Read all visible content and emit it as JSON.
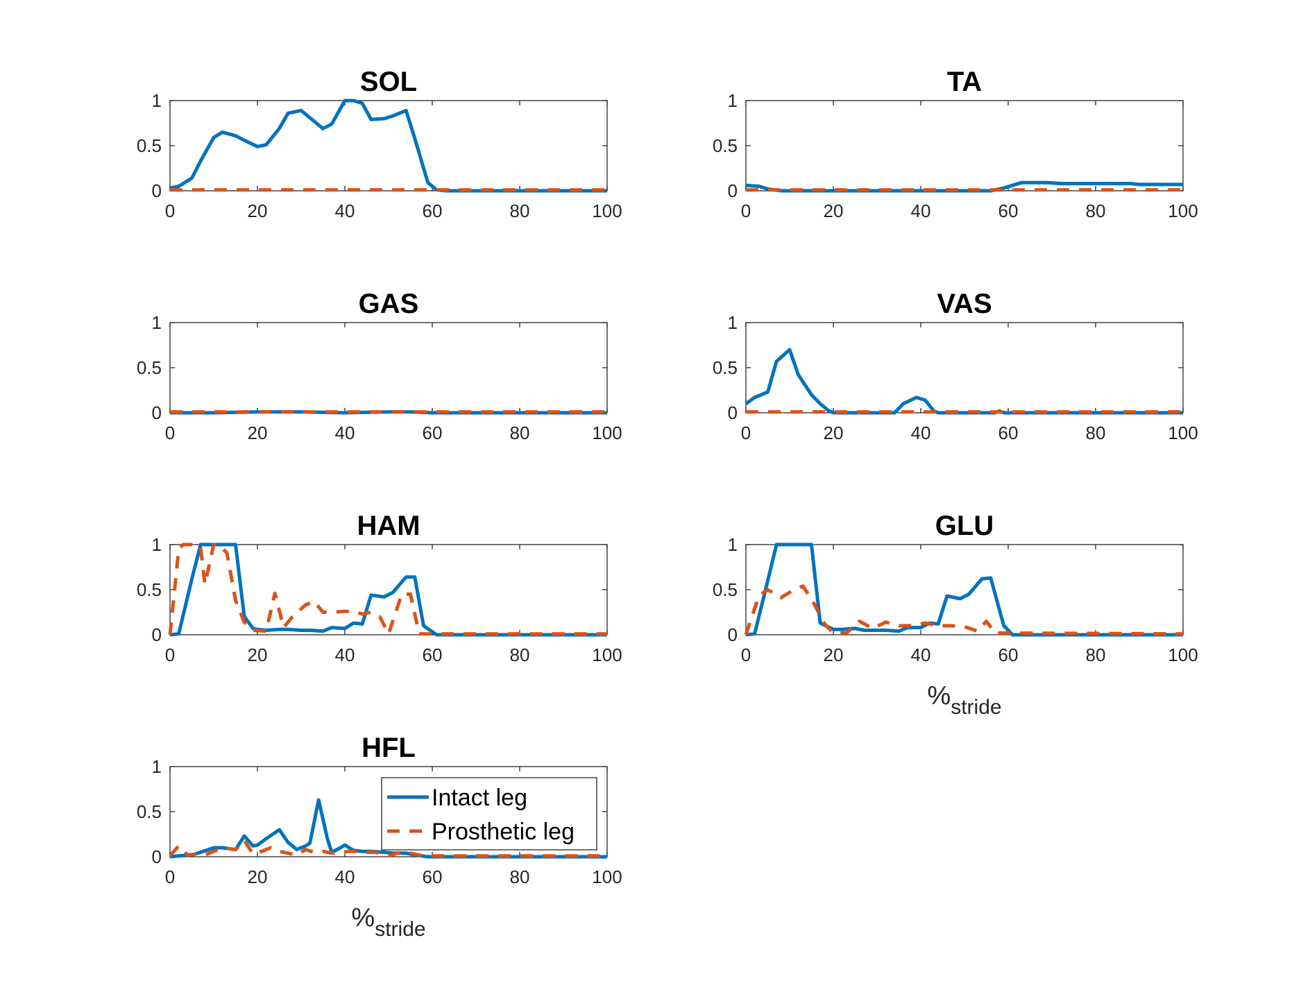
{
  "colors": {
    "intact": "#0072BD",
    "prosthetic": "#D95319"
  },
  "legend": {
    "intact_label": "Intact leg",
    "prosthetic_label": "Prosthetic leg"
  },
  "xlabel_main": "%",
  "xlabel_sub": "stride",
  "chart_data": [
    {
      "type": "line",
      "title": "SOL",
      "xlim": [
        0,
        100
      ],
      "ylim": [
        0,
        1
      ],
      "xticks": [
        0,
        20,
        40,
        60,
        80,
        100
      ],
      "yticks": [
        0,
        0.5,
        1
      ],
      "xlabel": "",
      "series": [
        {
          "name": "Intact leg",
          "x": [
            0,
            2,
            5,
            7,
            10,
            12,
            15,
            17,
            20,
            22,
            25,
            27,
            30,
            32,
            35,
            37,
            40,
            42,
            44,
            46,
            49,
            51,
            54,
            56,
            59,
            61,
            63,
            100
          ],
          "y": [
            0.03,
            0.05,
            0.14,
            0.33,
            0.59,
            0.65,
            0.61,
            0.56,
            0.49,
            0.51,
            0.69,
            0.86,
            0.89,
            0.81,
            0.69,
            0.74,
            1.0,
            1.0,
            0.97,
            0.79,
            0.8,
            0.83,
            0.89,
            0.58,
            0.09,
            0.01,
            0.0,
            0.0
          ]
        },
        {
          "name": "Prosthetic leg",
          "x": [
            0,
            100
          ],
          "y": [
            0.01,
            0.01
          ]
        }
      ]
    },
    {
      "type": "line",
      "title": "TA",
      "xlim": [
        0,
        100
      ],
      "ylim": [
        0,
        1
      ],
      "xticks": [
        0,
        20,
        40,
        60,
        80,
        100
      ],
      "yticks": [
        0,
        0.5,
        1
      ],
      "xlabel": "",
      "series": [
        {
          "name": "Intact leg",
          "x": [
            0,
            3,
            5,
            8,
            56,
            59,
            61,
            63,
            66,
            69,
            72,
            75,
            80,
            82,
            85,
            88,
            90,
            95,
            100
          ],
          "y": [
            0.06,
            0.05,
            0.02,
            0.0,
            0.0,
            0.03,
            0.06,
            0.09,
            0.09,
            0.09,
            0.08,
            0.08,
            0.08,
            0.08,
            0.08,
            0.08,
            0.07,
            0.07,
            0.07
          ]
        },
        {
          "name": "Prosthetic leg",
          "x": [
            0,
            100
          ],
          "y": [
            0.01,
            0.01
          ]
        }
      ]
    },
    {
      "type": "line",
      "title": "GAS",
      "xlim": [
        0,
        100
      ],
      "ylim": [
        0,
        1
      ],
      "xticks": [
        0,
        20,
        40,
        60,
        80,
        100
      ],
      "yticks": [
        0,
        0.5,
        1
      ],
      "xlabel": "",
      "series": [
        {
          "name": "Intact leg",
          "x": [
            0,
            10,
            20,
            30,
            40,
            50,
            55,
            60,
            100
          ],
          "y": [
            0.0,
            0.0,
            0.01,
            0.01,
            0.0,
            0.01,
            0.01,
            0.0,
            0.0
          ]
        },
        {
          "name": "Prosthetic leg",
          "x": [
            0,
            100
          ],
          "y": [
            0.01,
            0.01
          ]
        }
      ]
    },
    {
      "type": "line",
      "title": "VAS",
      "xlim": [
        0,
        100
      ],
      "ylim": [
        0,
        1
      ],
      "xticks": [
        0,
        20,
        40,
        60,
        80,
        100
      ],
      "yticks": [
        0,
        0.5,
        1
      ],
      "xlabel": "",
      "series": [
        {
          "name": "Intact leg",
          "x": [
            0,
            2,
            5,
            7,
            10,
            12,
            15,
            17,
            19,
            20,
            34,
            36,
            39,
            41,
            43,
            44,
            57,
            58,
            59,
            100
          ],
          "y": [
            0.1,
            0.17,
            0.23,
            0.57,
            0.7,
            0.42,
            0.2,
            0.1,
            0.02,
            0.0,
            0.0,
            0.1,
            0.17,
            0.14,
            0.02,
            0.0,
            0.0,
            0.02,
            0.0,
            0.0
          ]
        },
        {
          "name": "Prosthetic leg",
          "x": [
            0,
            100
          ],
          "y": [
            0.01,
            0.01
          ]
        }
      ]
    },
    {
      "type": "line",
      "title": "HAM",
      "xlim": [
        0,
        100
      ],
      "ylim": [
        0,
        1
      ],
      "xticks": [
        0,
        20,
        40,
        60,
        80,
        100
      ],
      "yticks": [
        0,
        0.5,
        1
      ],
      "xlabel": "",
      "series": [
        {
          "name": "Intact leg",
          "x": [
            0,
            2,
            5,
            7,
            10,
            12,
            15,
            17,
            19,
            20,
            22,
            25,
            27,
            30,
            32,
            35,
            37,
            40,
            42,
            44,
            46,
            49,
            51,
            54,
            56,
            58,
            61,
            100
          ],
          "y": [
            0.0,
            0.01,
            0.62,
            1.0,
            1.0,
            1.0,
            1.0,
            0.2,
            0.07,
            0.06,
            0.05,
            0.06,
            0.06,
            0.05,
            0.05,
            0.04,
            0.08,
            0.07,
            0.13,
            0.12,
            0.44,
            0.42,
            0.47,
            0.64,
            0.64,
            0.1,
            0.0,
            0.0
          ]
        },
        {
          "name": "Prosthetic leg",
          "x": [
            0,
            2,
            3,
            5,
            7,
            8,
            10,
            11,
            13,
            15,
            17,
            19,
            22,
            24,
            26,
            28,
            31,
            33,
            35,
            37,
            40,
            42,
            44,
            46,
            48,
            50,
            53,
            55,
            57,
            100
          ],
          "y": [
            0.0,
            0.95,
            1.0,
            1.0,
            0.97,
            0.56,
            1.0,
            1.0,
            0.91,
            0.38,
            0.14,
            0.05,
            0.04,
            0.46,
            0.08,
            0.2,
            0.33,
            0.37,
            0.25,
            0.25,
            0.26,
            0.26,
            0.23,
            0.25,
            0.2,
            0.01,
            0.45,
            0.45,
            0.01,
            0.01
          ]
        }
      ]
    },
    {
      "type": "line",
      "title": "GLU",
      "xlim": [
        0,
        100
      ],
      "ylim": [
        0,
        1
      ],
      "xticks": [
        0,
        20,
        40,
        60,
        80,
        100
      ],
      "yticks": [
        0,
        0.5,
        1
      ],
      "xlabel": "%stride",
      "series": [
        {
          "name": "Intact leg",
          "x": [
            0,
            2,
            5,
            7,
            10,
            12,
            15,
            17,
            20,
            22,
            25,
            27,
            30,
            32,
            35,
            37,
            40,
            42,
            44,
            46,
            49,
            51,
            54,
            56,
            59,
            61,
            100
          ],
          "y": [
            0.0,
            0.01,
            0.6,
            1.0,
            1.0,
            1.0,
            1.0,
            0.13,
            0.06,
            0.06,
            0.07,
            0.05,
            0.05,
            0.05,
            0.04,
            0.08,
            0.08,
            0.13,
            0.12,
            0.43,
            0.4,
            0.45,
            0.62,
            0.63,
            0.1,
            0.0,
            0.0
          ]
        },
        {
          "name": "Prosthetic leg",
          "x": [
            0,
            1,
            3,
            5,
            8,
            10,
            13,
            15,
            18,
            20,
            23,
            26,
            29,
            32,
            35,
            38,
            41,
            44,
            47,
            50,
            53,
            55,
            57,
            100
          ],
          "y": [
            0.0,
            0.15,
            0.43,
            0.5,
            0.41,
            0.47,
            0.54,
            0.4,
            0.12,
            0.02,
            0.02,
            0.15,
            0.07,
            0.14,
            0.1,
            0.1,
            0.13,
            0.1,
            0.1,
            0.09,
            0.04,
            0.15,
            0.02,
            0.01
          ]
        }
      ]
    },
    {
      "type": "line",
      "title": "HFL",
      "xlim": [
        0,
        100
      ],
      "ylim": [
        0,
        1
      ],
      "xticks": [
        0,
        20,
        40,
        60,
        80,
        100
      ],
      "yticks": [
        0,
        0.5,
        1
      ],
      "xlabel": "%stride",
      "legend_position": "upper-right",
      "series": [
        {
          "name": "Intact leg",
          "x": [
            0,
            2,
            5,
            7,
            10,
            12,
            15,
            17,
            19,
            20,
            22,
            25,
            27,
            29,
            31,
            32,
            34,
            36,
            37,
            39,
            40,
            42,
            44,
            46,
            49,
            51,
            54,
            56,
            59,
            61,
            100
          ],
          "y": [
            0.0,
            0.01,
            0.02,
            0.05,
            0.1,
            0.1,
            0.08,
            0.23,
            0.12,
            0.13,
            0.2,
            0.3,
            0.16,
            0.08,
            0.12,
            0.15,
            0.63,
            0.2,
            0.05,
            0.1,
            0.13,
            0.07,
            0.06,
            0.06,
            0.05,
            0.04,
            0.04,
            0.02,
            0.0,
            0.0,
            0.0
          ]
        },
        {
          "name": "Prosthetic leg",
          "x": [
            0,
            2,
            4,
            6,
            8,
            10,
            12,
            15,
            17,
            19,
            21,
            23,
            25,
            27,
            29,
            31,
            33,
            35,
            37,
            39,
            41,
            43,
            45,
            47,
            50,
            52,
            55,
            58,
            61,
            100
          ],
          "y": [
            0.01,
            0.12,
            0.02,
            0.03,
            0.02,
            0.06,
            0.1,
            0.08,
            0.18,
            0.03,
            0.06,
            0.1,
            0.06,
            0.04,
            0.02,
            0.08,
            0.05,
            0.06,
            0.04,
            0.05,
            0.06,
            0.06,
            0.05,
            0.05,
            0.01,
            0.04,
            0.04,
            0.01,
            0.01,
            0.01
          ]
        }
      ]
    }
  ]
}
